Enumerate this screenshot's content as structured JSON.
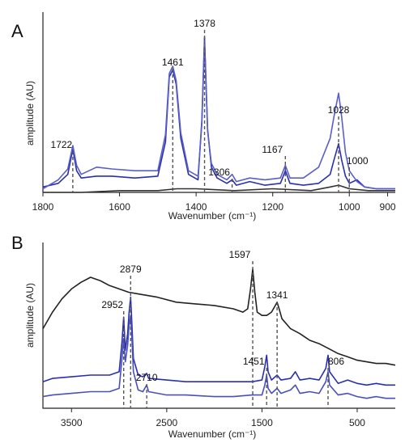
{
  "chart_data": [
    {
      "panel_label": "A",
      "type": "line",
      "xlabel": "Wavenumber (cm⁻¹)",
      "ylabel": "amplitude (AU)",
      "x_reversed": true,
      "xlim": [
        1800,
        880
      ],
      "ylim": [
        0,
        1.0
      ],
      "x_ticks": [
        1800,
        1600,
        1400,
        1200,
        1000,
        900
      ],
      "peak_labels": [
        {
          "text": "1722",
          "x": 1722
        },
        {
          "text": "1461",
          "x": 1461
        },
        {
          "text": "1378",
          "x": 1378
        },
        {
          "text": "1306",
          "x": 1306
        },
        {
          "text": "1167",
          "x": 1167
        },
        {
          "text": "1028",
          "x": 1028
        },
        {
          "text": "1000",
          "x": 1000
        }
      ],
      "series": [
        {
          "color": "#2a2fb0",
          "points": [
            [
              1800,
              0.03
            ],
            [
              1760,
              0.05
            ],
            [
              1735,
              0.1
            ],
            [
              1722,
              0.24
            ],
            [
              1712,
              0.12
            ],
            [
              1700,
              0.08
            ],
            [
              1660,
              0.09
            ],
            [
              1620,
              0.09
            ],
            [
              1560,
              0.08
            ],
            [
              1500,
              0.09
            ],
            [
              1480,
              0.28
            ],
            [
              1470,
              0.64
            ],
            [
              1461,
              0.68
            ],
            [
              1452,
              0.6
            ],
            [
              1440,
              0.3
            ],
            [
              1420,
              0.1
            ],
            [
              1395,
              0.07
            ],
            [
              1385,
              0.4
            ],
            [
              1378,
              0.86
            ],
            [
              1370,
              0.35
            ],
            [
              1360,
              0.14
            ],
            [
              1345,
              0.08
            ],
            [
              1320,
              0.05
            ],
            [
              1306,
              0.07
            ],
            [
              1295,
              0.04
            ],
            [
              1260,
              0.06
            ],
            [
              1220,
              0.04
            ],
            [
              1180,
              0.05
            ],
            [
              1167,
              0.12
            ],
            [
              1155,
              0.05
            ],
            [
              1120,
              0.04
            ],
            [
              1080,
              0.05
            ],
            [
              1050,
              0.1
            ],
            [
              1040,
              0.18
            ],
            [
              1028,
              0.27
            ],
            [
              1020,
              0.18
            ],
            [
              1010,
              0.09
            ],
            [
              1000,
              0.05
            ],
            [
              980,
              0.07
            ],
            [
              960,
              0.03
            ],
            [
              930,
              0.02
            ],
            [
              880,
              0.02
            ]
          ]
        },
        {
          "color": "#5a5fc8",
          "points": [
            [
              1800,
              0.02
            ],
            [
              1760,
              0.07
            ],
            [
              1735,
              0.13
            ],
            [
              1722,
              0.26
            ],
            [
              1712,
              0.15
            ],
            [
              1700,
              0.1
            ],
            [
              1660,
              0.14
            ],
            [
              1620,
              0.13
            ],
            [
              1560,
              0.12
            ],
            [
              1500,
              0.12
            ],
            [
              1480,
              0.32
            ],
            [
              1470,
              0.66
            ],
            [
              1461,
              0.7
            ],
            [
              1452,
              0.62
            ],
            [
              1440,
              0.33
            ],
            [
              1420,
              0.12
            ],
            [
              1395,
              0.09
            ],
            [
              1385,
              0.38
            ],
            [
              1378,
              0.84
            ],
            [
              1370,
              0.34
            ],
            [
              1360,
              0.16
            ],
            [
              1345,
              0.1
            ],
            [
              1320,
              0.07
            ],
            [
              1306,
              0.1
            ],
            [
              1295,
              0.06
            ],
            [
              1260,
              0.08
            ],
            [
              1220,
              0.07
            ],
            [
              1180,
              0.08
            ],
            [
              1167,
              0.15
            ],
            [
              1155,
              0.08
            ],
            [
              1120,
              0.08
            ],
            [
              1080,
              0.14
            ],
            [
              1050,
              0.3
            ],
            [
              1040,
              0.42
            ],
            [
              1028,
              0.55
            ],
            [
              1020,
              0.42
            ],
            [
              1010,
              0.22
            ],
            [
              1000,
              0.12
            ],
            [
              980,
              0.06
            ],
            [
              960,
              0.03
            ],
            [
              930,
              0.02
            ],
            [
              880,
              0.02
            ]
          ]
        },
        {
          "color": "#333333",
          "points": [
            [
              1800,
              0.0
            ],
            [
              1700,
              0.0
            ],
            [
              1600,
              0.01
            ],
            [
              1500,
              0.01
            ],
            [
              1450,
              0.02
            ],
            [
              1400,
              0.02
            ],
            [
              1300,
              0.01
            ],
            [
              1200,
              0.02
            ],
            [
              1100,
              0.01
            ],
            [
              1050,
              0.03
            ],
            [
              1028,
              0.04
            ],
            [
              1000,
              0.02
            ],
            [
              950,
              0.01
            ],
            [
              880,
              0.01
            ]
          ]
        }
      ]
    },
    {
      "panel_label": "B",
      "type": "line",
      "xlabel": "Wavenumber (cm⁻¹)",
      "ylabel": "amplitude (AU)",
      "x_reversed": true,
      "xlim": [
        3800,
        100
      ],
      "ylim": [
        0,
        1.0
      ],
      "x_ticks": [
        3500,
        2500,
        1500,
        500
      ],
      "peak_labels": [
        {
          "text": "2952",
          "x": 2952
        },
        {
          "text": "2879",
          "x": 2879
        },
        {
          "text": "2710",
          "x": 2710
        },
        {
          "text": "1597",
          "x": 1597
        },
        {
          "text": "1451",
          "x": 1451
        },
        {
          "text": "1341",
          "x": 1341
        },
        {
          "text": "806",
          "x": 806
        }
      ],
      "series": [
        {
          "color": "#222222",
          "points": [
            [
              3800,
              0.48
            ],
            [
              3700,
              0.58
            ],
            [
              3600,
              0.66
            ],
            [
              3500,
              0.72
            ],
            [
              3400,
              0.76
            ],
            [
              3300,
              0.79
            ],
            [
              3200,
              0.77
            ],
            [
              3100,
              0.74
            ],
            [
              3000,
              0.72
            ],
            [
              2900,
              0.7
            ],
            [
              2800,
              0.69
            ],
            [
              2600,
              0.67
            ],
            [
              2400,
              0.64
            ],
            [
              2200,
              0.63
            ],
            [
              2000,
              0.62
            ],
            [
              1800,
              0.6
            ],
            [
              1700,
              0.58
            ],
            [
              1650,
              0.6
            ],
            [
              1620,
              0.72
            ],
            [
              1597,
              0.84
            ],
            [
              1575,
              0.7
            ],
            [
              1550,
              0.58
            ],
            [
              1500,
              0.56
            ],
            [
              1450,
              0.56
            ],
            [
              1400,
              0.58
            ],
            [
              1360,
              0.62
            ],
            [
              1341,
              0.64
            ],
            [
              1320,
              0.6
            ],
            [
              1290,
              0.54
            ],
            [
              1200,
              0.48
            ],
            [
              1100,
              0.45
            ],
            [
              1000,
              0.41
            ],
            [
              900,
              0.39
            ],
            [
              800,
              0.36
            ],
            [
              700,
              0.33
            ],
            [
              600,
              0.31
            ],
            [
              500,
              0.29
            ],
            [
              400,
              0.28
            ],
            [
              300,
              0.27
            ],
            [
              200,
              0.27
            ],
            [
              100,
              0.26
            ]
          ]
        },
        {
          "color": "#2a2fb0",
          "points": [
            [
              3800,
              0.16
            ],
            [
              3700,
              0.18
            ],
            [
              3500,
              0.19
            ],
            [
              3300,
              0.2
            ],
            [
              3100,
              0.2
            ],
            [
              3000,
              0.22
            ],
            [
              2970,
              0.4
            ],
            [
              2952,
              0.55
            ],
            [
              2935,
              0.35
            ],
            [
              2910,
              0.45
            ],
            [
              2895,
              0.58
            ],
            [
              2879,
              0.67
            ],
            [
              2865,
              0.5
            ],
            [
              2850,
              0.3
            ],
            [
              2800,
              0.2
            ],
            [
              2750,
              0.19
            ],
            [
              2710,
              0.21
            ],
            [
              2690,
              0.18
            ],
            [
              2500,
              0.17
            ],
            [
              2300,
              0.16
            ],
            [
              2000,
              0.16
            ],
            [
              1800,
              0.16
            ],
            [
              1600,
              0.16
            ],
            [
              1500,
              0.17
            ],
            [
              1470,
              0.25
            ],
            [
              1451,
              0.32
            ],
            [
              1435,
              0.22
            ],
            [
              1400,
              0.17
            ],
            [
              1341,
              0.2
            ],
            [
              1300,
              0.17
            ],
            [
              1200,
              0.18
            ],
            [
              1150,
              0.22
            ],
            [
              1100,
              0.17
            ],
            [
              1000,
              0.18
            ],
            [
              900,
              0.17
            ],
            [
              830,
              0.24
            ],
            [
              806,
              0.32
            ],
            [
              790,
              0.22
            ],
            [
              700,
              0.15
            ],
            [
              600,
              0.17
            ],
            [
              500,
              0.15
            ],
            [
              400,
              0.14
            ],
            [
              300,
              0.15
            ],
            [
              200,
              0.14
            ],
            [
              100,
              0.14
            ]
          ]
        },
        {
          "color": "#4a4fc0",
          "points": [
            [
              3800,
              0.07
            ],
            [
              3700,
              0.08
            ],
            [
              3500,
              0.09
            ],
            [
              3300,
              0.1
            ],
            [
              3100,
              0.1
            ],
            [
              3000,
              0.12
            ],
            [
              2970,
              0.3
            ],
            [
              2952,
              0.42
            ],
            [
              2935,
              0.28
            ],
            [
              2910,
              0.38
            ],
            [
              2895,
              0.5
            ],
            [
              2879,
              0.56
            ],
            [
              2865,
              0.42
            ],
            [
              2850,
              0.22
            ],
            [
              2800,
              0.11
            ],
            [
              2750,
              0.1
            ],
            [
              2710,
              0.14
            ],
            [
              2690,
              0.1
            ],
            [
              2500,
              0.08
            ],
            [
              2300,
              0.08
            ],
            [
              2000,
              0.07
            ],
            [
              1800,
              0.07
            ],
            [
              1600,
              0.08
            ],
            [
              1500,
              0.08
            ],
            [
              1470,
              0.14
            ],
            [
              1451,
              0.2
            ],
            [
              1435,
              0.12
            ],
            [
              1400,
              0.09
            ],
            [
              1341,
              0.12
            ],
            [
              1300,
              0.09
            ],
            [
              1200,
              0.11
            ],
            [
              1150,
              0.14
            ],
            [
              1100,
              0.09
            ],
            [
              1000,
              0.1
            ],
            [
              900,
              0.09
            ],
            [
              830,
              0.16
            ],
            [
              806,
              0.22
            ],
            [
              790,
              0.14
            ],
            [
              700,
              0.08
            ],
            [
              600,
              0.09
            ],
            [
              500,
              0.07
            ],
            [
              400,
              0.06
            ],
            [
              300,
              0.07
            ],
            [
              200,
              0.06
            ],
            [
              100,
              0.06
            ]
          ]
        }
      ]
    }
  ]
}
